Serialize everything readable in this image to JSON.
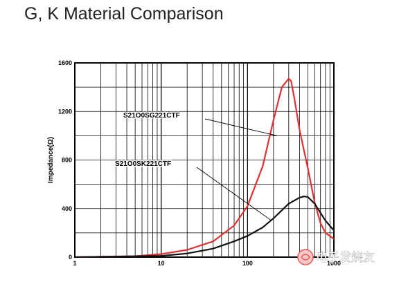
{
  "watermark": {
    "text": "电子发烧友"
  },
  "chart_data": {
    "type": "line",
    "title": "G, K Material Comparison",
    "xlabel": "",
    "ylabel": "Impedance(Ω)",
    "xscale": "log",
    "xlim": [
      1,
      1000
    ],
    "ylim": [
      0,
      1600
    ],
    "grid": true,
    "x_ticks": [
      "1",
      "10",
      "100",
      "1000"
    ],
    "y_ticks": [
      "0",
      "400",
      "800",
      "1200",
      "1600"
    ],
    "series": [
      {
        "name": "S21O0SG221CTF",
        "color": "#e03030",
        "x": [
          1,
          5,
          10,
          20,
          40,
          70,
          100,
          150,
          200,
          250,
          300,
          320,
          350,
          400,
          500,
          600,
          700,
          800,
          1000
        ],
        "y": [
          0,
          8,
          25,
          60,
          130,
          260,
          420,
          750,
          1130,
          1400,
          1470,
          1450,
          1300,
          1050,
          730,
          450,
          280,
          200,
          150
        ]
      },
      {
        "name": "S21O0SK221CTF",
        "color": "#111111",
        "x": [
          1,
          10,
          20,
          40,
          70,
          100,
          150,
          200,
          300,
          400,
          450,
          500,
          600,
          800,
          1000
        ],
        "y": [
          0,
          10,
          30,
          70,
          130,
          175,
          245,
          320,
          440,
          490,
          500,
          495,
          440,
          300,
          220
        ]
      }
    ],
    "annotations": [
      {
        "text": "S21O0SG221CTF",
        "target_x": 220,
        "target_y": 1000
      },
      {
        "text": "S21O0SK221CTF",
        "target_x": 190,
        "target_y": 300
      }
    ]
  }
}
